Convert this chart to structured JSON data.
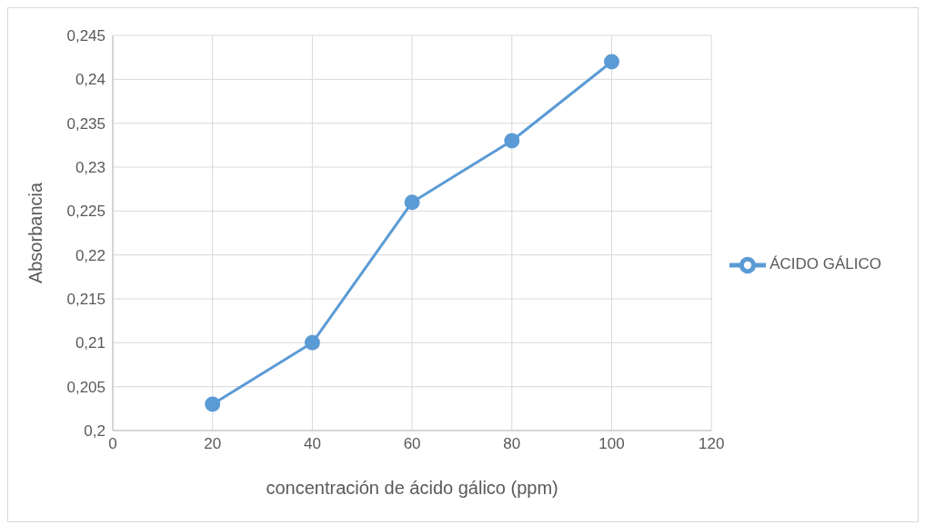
{
  "chart_data": {
    "type": "line",
    "xlabel": "concentración de ácido gálico (ppm)",
    "ylabel": "Absorbancia",
    "x": [
      20,
      40,
      60,
      80,
      100
    ],
    "series": [
      {
        "name": "ÁCIDO GÁLICO",
        "color": "#5b9bd5",
        "values": [
          0.203,
          0.21,
          0.226,
          0.233,
          0.242
        ]
      }
    ],
    "xlim": [
      0,
      120
    ],
    "xticks": [
      0,
      20,
      40,
      60,
      80,
      100,
      120
    ],
    "ylim": [
      0.2,
      0.245
    ],
    "yticks": [
      {
        "value": 0.2,
        "label": "0,2"
      },
      {
        "value": 0.205,
        "label": "0,205"
      },
      {
        "value": 0.21,
        "label": "0,21"
      },
      {
        "value": 0.215,
        "label": "0,215"
      },
      {
        "value": 0.22,
        "label": "0,22"
      },
      {
        "value": 0.225,
        "label": "0,225"
      },
      {
        "value": 0.23,
        "label": "0,23"
      },
      {
        "value": 0.235,
        "label": "0,235"
      },
      {
        "value": 0.24,
        "label": "0,24"
      },
      {
        "value": 0.245,
        "label": "0,245"
      }
    ],
    "grid": true,
    "legend": "right",
    "marker": "circle",
    "line_style": "solid"
  }
}
